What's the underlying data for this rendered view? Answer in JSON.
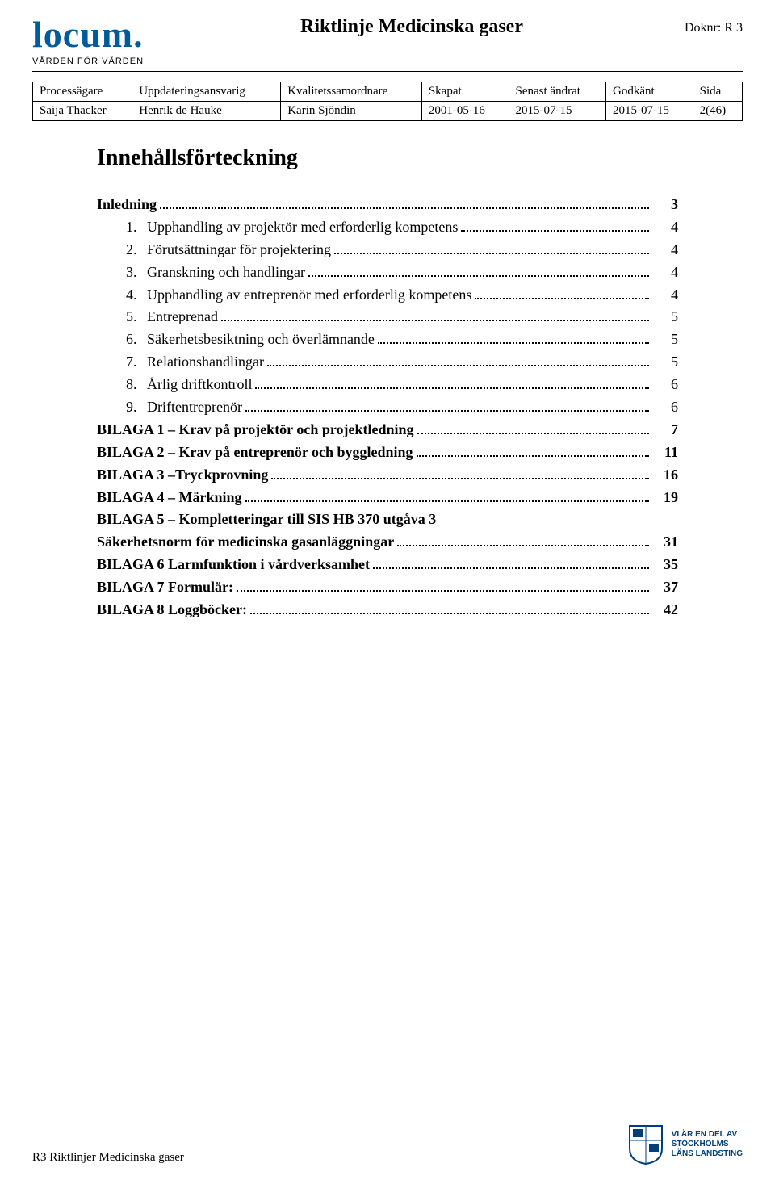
{
  "header": {
    "logo_text": "locum.",
    "logo_sub": "VÅRDEN FÖR VÅRDEN",
    "title": "Riktlinje Medicinska gaser",
    "doknr": "Doknr: R 3"
  },
  "meta": {
    "cols": [
      {
        "head": "Processägare",
        "val": "Saija Thacker"
      },
      {
        "head": "Uppdateringsansvarig",
        "val": "Henrik de Hauke"
      },
      {
        "head": "Kvalitetssamordnare",
        "val": "Karin Sjöndin"
      },
      {
        "head": "Skapat",
        "val": "2001-05-16"
      },
      {
        "head": "Senast ändrat",
        "val": "2015-07-15"
      },
      {
        "head": "Godkänt",
        "val": "2015-07-15"
      },
      {
        "head": "Sida",
        "val": "2(46)"
      }
    ]
  },
  "toc_title": "Innehållsförteckning",
  "toc": [
    {
      "bold": true,
      "label": "Inledning",
      "page": "3"
    },
    {
      "sub": true,
      "num": "1.",
      "label": "Upphandling av projektör med erforderlig kompetens",
      "page": "4"
    },
    {
      "sub": true,
      "num": "2.",
      "label": "Förutsättningar för projektering",
      "page": "4"
    },
    {
      "sub": true,
      "num": "3.",
      "label": "Granskning och handlingar",
      "page": "4"
    },
    {
      "sub": true,
      "num": "4.",
      "label": "Upphandling av entreprenör med erforderlig kompetens",
      "page": "4"
    },
    {
      "sub": true,
      "num": "5.",
      "label": "Entreprenad",
      "page": "5"
    },
    {
      "sub": true,
      "num": "6.",
      "label": "Säkerhetsbesiktning och överlämnande",
      "page": "5"
    },
    {
      "sub": true,
      "num": "7.",
      "label": "Relationshandlingar",
      "page": "5"
    },
    {
      "sub": true,
      "num": "8.",
      "label": "Årlig driftkontroll",
      "page": "6"
    },
    {
      "sub": true,
      "num": "9.",
      "label": "Driftentreprenör",
      "page": "6"
    },
    {
      "bold": true,
      "label": "BILAGA 1 – Krav på projektör och projektledning",
      "page": "7"
    },
    {
      "bold": true,
      "label": "BILAGA 2 – Krav på entreprenör och byggledning",
      "page": "11"
    },
    {
      "bold": true,
      "label": "BILAGA 3 –Tryckprovning",
      "page": "16"
    },
    {
      "bold": true,
      "label": "BILAGA 4 – Märkning",
      "page": "19"
    },
    {
      "bold": true,
      "multi": true,
      "line1": "BILAGA 5 – Kompletteringar till SIS HB 370 utgåva 3",
      "label": "Säkerhetsnorm för medicinska gasanläggningar",
      "page": "31"
    },
    {
      "bold": true,
      "label": "BILAGA 6 Larmfunktion i vårdverksamhet",
      "page": "35"
    },
    {
      "bold": true,
      "label": "BILAGA 7 Formulär:",
      "page": "37"
    },
    {
      "bold": true,
      "label": "BILAGA 8 Loggböcker:",
      "page": "42"
    }
  ],
  "footer": {
    "left": "R3 Riktlinjer Medicinska gaser",
    "sll": {
      "l1": "VI ÄR EN DEL AV",
      "l2": "STOCKHOLMS",
      "l3": "LÄNS LANDSTING"
    }
  },
  "colors": {
    "logo_blue": "#005b9a",
    "sll_blue": "#003f7a",
    "text": "#000000",
    "bg": "#ffffff"
  }
}
